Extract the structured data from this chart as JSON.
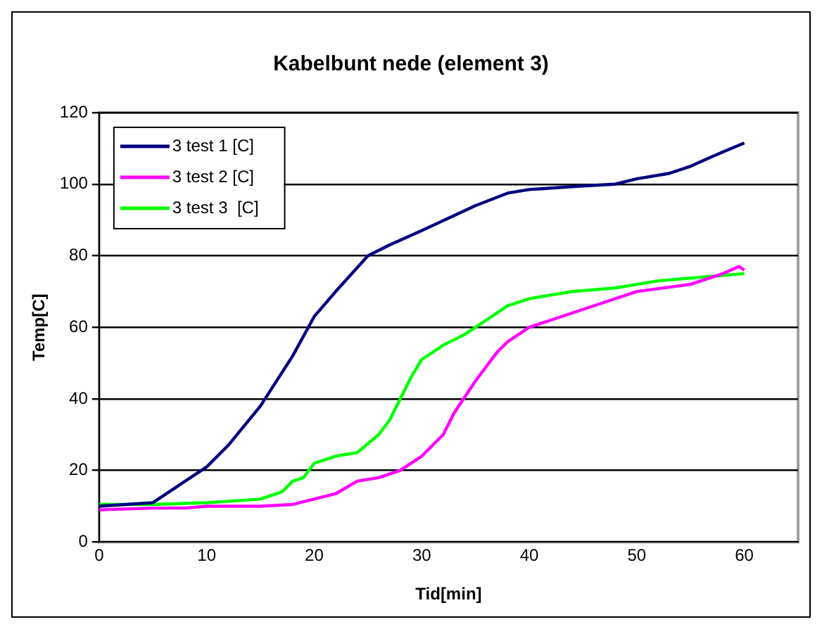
{
  "chart_data": {
    "type": "line",
    "title": "Kabelbunt nede (element 3)",
    "xlabel": "Tid[min]",
    "ylabel": "Temp[C]",
    "xlim": [
      0,
      65
    ],
    "xticks": [
      0,
      10,
      20,
      30,
      40,
      50,
      60
    ],
    "ylim": [
      0,
      120
    ],
    "yticks": [
      0,
      20,
      40,
      60,
      80,
      100,
      120
    ],
    "grid": "y",
    "legend": "top left",
    "marker": "none",
    "line_style": "solid",
    "series": [
      {
        "name": "3 test 1 [C]",
        "color": "#000080",
        "x": [
          0,
          5,
          7,
          10,
          12,
          15,
          18,
          20,
          22,
          25,
          27,
          30,
          35,
          38,
          40,
          45,
          48,
          50,
          53,
          55,
          58,
          60
        ],
        "values": [
          10,
          11,
          15,
          21,
          27,
          38,
          52,
          63,
          70,
          80,
          83,
          87,
          94,
          97.5,
          98.5,
          99.5,
          100,
          101.5,
          103,
          105,
          109,
          111.5
        ]
      },
      {
        "name": "3 test 2 [C]",
        "color": "#ff00ff",
        "x": [
          0,
          5,
          8,
          10,
          15,
          18,
          20,
          22,
          24,
          26,
          28,
          30,
          32,
          33,
          35,
          37,
          38,
          40,
          42,
          45,
          48,
          50,
          55,
          58,
          59.5,
          60
        ],
        "values": [
          9,
          9.5,
          9.5,
          10,
          10,
          10.5,
          12,
          13.5,
          17,
          18,
          20,
          24,
          30,
          36,
          45,
          53,
          56,
          60,
          62,
          65,
          68,
          70,
          72,
          75,
          77,
          76
        ]
      },
      {
        "name": "3 test 3  [C]",
        "color": "#00ff00",
        "x": [
          0,
          5,
          10,
          15,
          17,
          18,
          19,
          20,
          22,
          24,
          26,
          27,
          28,
          29,
          30,
          32,
          34,
          36,
          38,
          40,
          44,
          48,
          52,
          56,
          60
        ],
        "values": [
          10.5,
          10.5,
          11,
          12,
          14,
          17,
          18,
          22,
          24,
          25,
          30,
          34,
          40,
          46,
          51,
          55,
          58,
          62,
          66,
          68,
          70,
          71,
          73,
          74,
          75
        ]
      }
    ]
  }
}
